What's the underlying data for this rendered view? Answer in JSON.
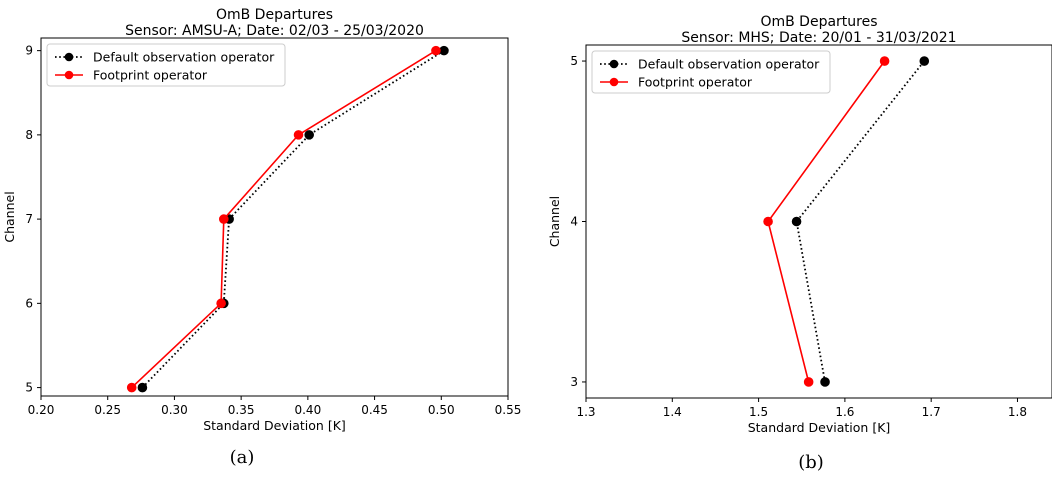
{
  "chart_data": [
    {
      "type": "line",
      "title": "OmB Departures",
      "subtitle": "Sensor: AMSU-A; Date: 02/03 - 25/03/2020",
      "xlabel": "Standard Deviation [K]",
      "ylabel": "Channel",
      "xlim": [
        0.2,
        0.55
      ],
      "ylim": [
        4.9,
        9.15
      ],
      "xticks": [
        "0.20",
        "0.25",
        "0.30",
        "0.35",
        "0.40",
        "0.45",
        "0.50",
        "0.55"
      ],
      "yticks": [
        "5",
        "6",
        "7",
        "8",
        "9"
      ],
      "legend_position": "top-left",
      "series": [
        {
          "name": "Default observation operator",
          "color": "#000000",
          "line_style": "dotted",
          "points": [
            [
              0.276,
              5
            ],
            [
              0.337,
              6
            ],
            [
              0.341,
              7
            ],
            [
              0.401,
              8
            ],
            [
              0.502,
              9
            ]
          ]
        },
        {
          "name": "Footprint operator",
          "color": "#ff0000",
          "line_style": "solid",
          "points": [
            [
              0.268,
              5
            ],
            [
              0.335,
              6
            ],
            [
              0.337,
              7
            ],
            [
              0.393,
              8
            ],
            [
              0.496,
              9
            ]
          ]
        }
      ],
      "caption": "(a)"
    },
    {
      "type": "line",
      "title": "OmB Departures",
      "subtitle": "Sensor: MHS; Date: 20/01 - 31/03/2021",
      "xlabel": "Standard Deviation [K]",
      "ylabel": "Channel",
      "xlim": [
        1.3,
        1.84
      ],
      "ylim": [
        2.9,
        5.1
      ],
      "xticks": [
        "1.3",
        "1.4",
        "1.5",
        "1.6",
        "1.7",
        "1.8"
      ],
      "yticks": [
        "3",
        "4",
        "5"
      ],
      "legend_position": "top-left",
      "series": [
        {
          "name": "Default observation operator",
          "color": "#000000",
          "line_style": "dotted",
          "points": [
            [
              1.577,
              3
            ],
            [
              1.544,
              4
            ],
            [
              1.692,
              5
            ]
          ]
        },
        {
          "name": "Footprint operator",
          "color": "#ff0000",
          "line_style": "solid",
          "points": [
            [
              1.558,
              3
            ],
            [
              1.511,
              4
            ],
            [
              1.646,
              5
            ]
          ]
        }
      ],
      "caption": "(b)"
    }
  ]
}
